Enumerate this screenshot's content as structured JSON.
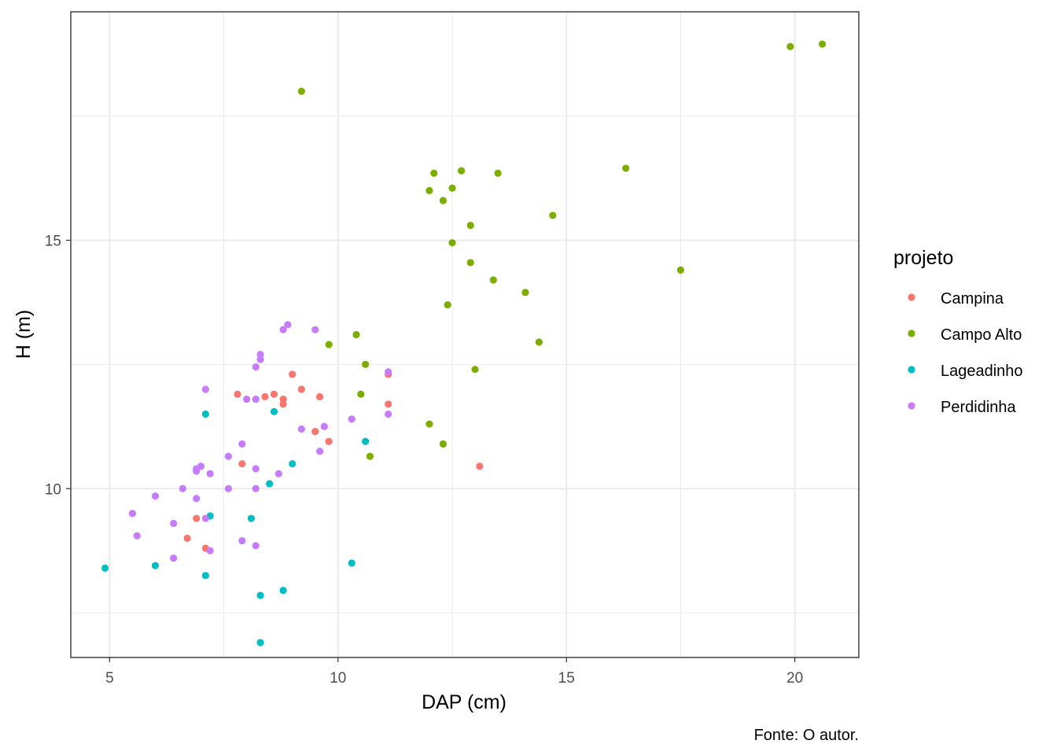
{
  "chart_data": {
    "type": "scatter",
    "title": "",
    "xlabel": "DAP (cm)",
    "ylabel": "H (m)",
    "caption": "Fonte: O autor.",
    "xlim": [
      4.15,
      21.4
    ],
    "ylim": [
      6.6,
      19.6
    ],
    "x_ticks": [
      5,
      10,
      15,
      20
    ],
    "x_tick_labels": [
      "5",
      "10",
      "15",
      "20"
    ],
    "y_ticks": [
      10,
      15
    ],
    "y_tick_labels": [
      "10",
      "15"
    ],
    "x_minor": [
      7.5,
      12.5,
      17.5
    ],
    "y_minor": [
      7.5,
      12.5,
      17.5
    ],
    "grid": true,
    "legend_title": "projeto",
    "legend_position": "right",
    "series": [
      {
        "name": "Campina",
        "color": "#F8766D",
        "points": [
          [
            6.7,
            9.0
          ],
          [
            6.9,
            9.4
          ],
          [
            7.1,
            8.8
          ],
          [
            7.8,
            11.9
          ],
          [
            7.9,
            10.5
          ],
          [
            8.4,
            11.85
          ],
          [
            8.6,
            11.9
          ],
          [
            8.8,
            11.8
          ],
          [
            8.8,
            11.7
          ],
          [
            9.0,
            12.3
          ],
          [
            9.2,
            12.0
          ],
          [
            9.5,
            11.15
          ],
          [
            9.6,
            11.85
          ],
          [
            9.8,
            10.95
          ],
          [
            11.1,
            11.7
          ],
          [
            11.1,
            12.3
          ],
          [
            13.1,
            10.45
          ]
        ]
      },
      {
        "name": "Campo Alto",
        "color": "#7CAE00",
        "points": [
          [
            9.2,
            18.0
          ],
          [
            9.8,
            12.9
          ],
          [
            10.4,
            13.1
          ],
          [
            10.5,
            11.9
          ],
          [
            10.6,
            12.5
          ],
          [
            10.7,
            10.65
          ],
          [
            12.0,
            16.0
          ],
          [
            12.0,
            11.3
          ],
          [
            12.1,
            16.35
          ],
          [
            12.3,
            15.8
          ],
          [
            12.3,
            10.9
          ],
          [
            12.4,
            13.7
          ],
          [
            12.5,
            16.05
          ],
          [
            12.5,
            14.95
          ],
          [
            12.7,
            16.4
          ],
          [
            12.9,
            15.3
          ],
          [
            12.9,
            14.55
          ],
          [
            13.0,
            12.4
          ],
          [
            13.4,
            14.2
          ],
          [
            13.5,
            16.35
          ],
          [
            14.1,
            13.95
          ],
          [
            14.4,
            12.95
          ],
          [
            14.7,
            15.5
          ],
          [
            16.3,
            16.45
          ],
          [
            17.5,
            14.4
          ],
          [
            19.9,
            18.9
          ],
          [
            20.6,
            18.95
          ]
        ]
      },
      {
        "name": "Lageadinho",
        "color": "#00BFC4",
        "points": [
          [
            4.9,
            8.4
          ],
          [
            6.0,
            8.45
          ],
          [
            7.1,
            11.5
          ],
          [
            7.1,
            8.25
          ],
          [
            7.2,
            9.45
          ],
          [
            8.1,
            9.4
          ],
          [
            8.3,
            7.85
          ],
          [
            8.3,
            6.9
          ],
          [
            8.5,
            10.1
          ],
          [
            8.6,
            11.55
          ],
          [
            8.8,
            7.95
          ],
          [
            9.0,
            10.5
          ],
          [
            10.3,
            8.5
          ],
          [
            10.6,
            10.95
          ]
        ]
      },
      {
        "name": "Perdidinha",
        "color": "#C77CFF",
        "points": [
          [
            5.5,
            9.5
          ],
          [
            5.6,
            9.05
          ],
          [
            6.0,
            9.85
          ],
          [
            6.4,
            9.3
          ],
          [
            6.4,
            8.6
          ],
          [
            6.6,
            10.0
          ],
          [
            6.9,
            10.35
          ],
          [
            6.9,
            10.4
          ],
          [
            6.9,
            9.8
          ],
          [
            7.0,
            10.45
          ],
          [
            7.1,
            9.4
          ],
          [
            7.1,
            12.0
          ],
          [
            7.2,
            10.3
          ],
          [
            7.2,
            8.75
          ],
          [
            7.6,
            10.65
          ],
          [
            7.6,
            10.0
          ],
          [
            7.9,
            10.9
          ],
          [
            7.9,
            8.95
          ],
          [
            8.0,
            11.8
          ],
          [
            8.2,
            12.45
          ],
          [
            8.2,
            11.8
          ],
          [
            8.2,
            10.4
          ],
          [
            8.2,
            10.0
          ],
          [
            8.2,
            8.85
          ],
          [
            8.3,
            12.7
          ],
          [
            8.3,
            12.6
          ],
          [
            8.7,
            10.3
          ],
          [
            8.8,
            13.2
          ],
          [
            8.9,
            13.3
          ],
          [
            9.2,
            11.2
          ],
          [
            9.5,
            13.2
          ],
          [
            9.6,
            10.75
          ],
          [
            9.7,
            11.25
          ],
          [
            10.3,
            11.4
          ],
          [
            11.1,
            12.35
          ],
          [
            11.1,
            11.5
          ]
        ]
      }
    ]
  }
}
